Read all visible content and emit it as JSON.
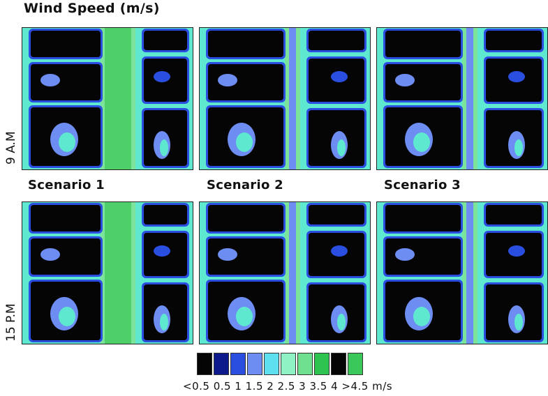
{
  "title": "Wind Speed (m/s)",
  "rows": [
    {
      "label": "9 A.M"
    },
    {
      "label": "15 P.M"
    }
  ],
  "scenarios": [
    {
      "label": "Scenario 1",
      "street": "wide"
    },
    {
      "label": "Scenario 2",
      "street": "narrow"
    },
    {
      "label": "Scenario 3",
      "street": "narrow"
    }
  ],
  "legend": {
    "colors": [
      "#050505",
      "#0d1a8c",
      "#2a4fe0",
      "#6e8df2",
      "#5fe0f0",
      "#8ef2c4",
      "#6fe08f",
      "#2fc44f",
      "#050505",
      "#3bc85a"
    ],
    "tick_label": "<0.5 0.5 1 1.5 2  2.5 3 3.5 4 >4.5 m/s"
  },
  "colors": {
    "building": "#050505",
    "street_light": "#5fe8d0",
    "street_mid": "#7ce49a",
    "street_green": "#4fcf6a",
    "shadow_blue": "#2a4fe0",
    "shadow_light": "#6e8df2"
  }
}
